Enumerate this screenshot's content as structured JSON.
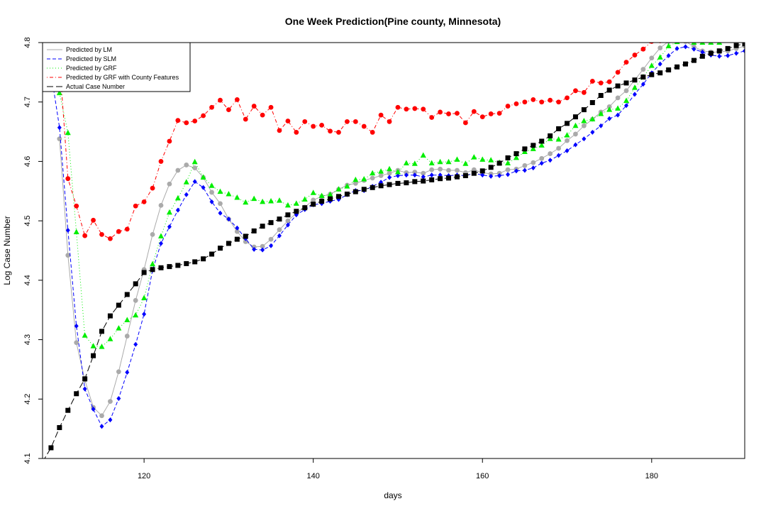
{
  "chart_data": {
    "type": "line",
    "title": "One Week Prediction(Pine county, Minnesota)",
    "xlabel": "days",
    "ylabel": "Log Case Number",
    "xlim": [
      108,
      191
    ],
    "ylim": [
      4.1,
      4.8
    ],
    "xticks": [
      120,
      140,
      160,
      180
    ],
    "yticks": [
      4.1,
      4.2,
      4.3,
      4.4,
      4.5,
      4.6,
      4.7,
      4.8
    ],
    "grid": false,
    "legend_position": "top-left",
    "x": [
      108,
      109,
      110,
      111,
      112,
      113,
      114,
      115,
      116,
      117,
      118,
      119,
      120,
      121,
      122,
      123,
      124,
      125,
      126,
      127,
      128,
      129,
      130,
      131,
      132,
      133,
      134,
      135,
      136,
      137,
      138,
      139,
      140,
      141,
      142,
      143,
      144,
      145,
      146,
      147,
      148,
      149,
      150,
      151,
      152,
      153,
      154,
      155,
      156,
      157,
      158,
      159,
      160,
      161,
      162,
      163,
      164,
      165,
      166,
      167,
      168,
      169,
      170,
      171,
      172,
      173,
      174,
      175,
      176,
      177,
      178,
      179,
      180,
      181,
      182,
      183,
      184,
      185,
      186,
      187,
      188,
      189,
      190,
      191
    ],
    "series": [
      {
        "name": "Predicted by LM",
        "color": "#aaaaaa",
        "line_style": "solid",
        "marker": "circle",
        "values": [
          null,
          null,
          4.638,
          4.442,
          4.295,
          4.232,
          4.186,
          4.172,
          4.196,
          4.246,
          4.306,
          4.366,
          4.418,
          4.477,
          4.526,
          4.562,
          4.585,
          4.594,
          4.589,
          4.573,
          4.548,
          4.529,
          4.503,
          4.482,
          4.465,
          4.456,
          4.457,
          4.469,
          4.485,
          4.5,
          4.513,
          4.523,
          4.535,
          4.541,
          4.545,
          4.553,
          4.56,
          4.563,
          4.568,
          4.572,
          4.576,
          4.58,
          4.585,
          4.581,
          4.582,
          4.58,
          4.586,
          4.587,
          4.585,
          4.585,
          4.581,
          4.586,
          4.581,
          4.579,
          4.58,
          4.586,
          4.587,
          4.593,
          4.598,
          4.605,
          4.613,
          4.622,
          4.635,
          4.646,
          4.66,
          4.671,
          4.683,
          4.692,
          4.707,
          4.719,
          4.737,
          4.755,
          4.774,
          4.791,
          4.802,
          4.803,
          4.802,
          4.793,
          4.786,
          4.784,
          4.784,
          4.786,
          4.79,
          4.794
        ]
      },
      {
        "name": "Predicted by SLM",
        "color": "#0000ff",
        "line_style": "dashed",
        "marker": "diamond",
        "values": [
          null,
          4.75,
          4.657,
          4.484,
          4.323,
          4.217,
          4.183,
          4.154,
          4.165,
          4.201,
          4.245,
          4.292,
          4.343,
          4.417,
          4.462,
          4.49,
          4.518,
          4.544,
          4.566,
          4.556,
          4.532,
          4.513,
          4.503,
          4.488,
          4.47,
          4.452,
          4.451,
          4.458,
          4.475,
          4.493,
          4.51,
          4.519,
          4.527,
          4.529,
          4.533,
          4.536,
          4.544,
          4.551,
          4.551,
          4.558,
          4.565,
          4.573,
          4.576,
          4.577,
          4.577,
          4.574,
          4.577,
          4.577,
          4.576,
          4.577,
          4.576,
          4.58,
          4.577,
          4.575,
          4.576,
          4.578,
          4.584,
          4.585,
          4.589,
          4.597,
          4.602,
          4.61,
          4.618,
          4.628,
          4.638,
          4.649,
          4.66,
          4.672,
          4.678,
          4.694,
          4.713,
          4.73,
          4.749,
          4.764,
          4.778,
          4.79,
          4.793,
          4.789,
          4.784,
          4.779,
          4.777,
          4.778,
          4.782,
          4.786
        ]
      },
      {
        "name": "Predicted by GRF",
        "color": "#00ee00",
        "line_style": "dotted",
        "marker": "triangle",
        "values": [
          null,
          null,
          4.715,
          4.648,
          4.481,
          4.307,
          4.289,
          4.288,
          4.301,
          4.319,
          4.333,
          4.341,
          4.37,
          4.427,
          4.474,
          4.514,
          4.538,
          4.565,
          4.599,
          4.573,
          4.559,
          4.549,
          4.545,
          4.539,
          4.531,
          4.537,
          4.532,
          4.533,
          4.534,
          4.526,
          4.529,
          4.536,
          4.547,
          4.542,
          4.544,
          4.553,
          4.558,
          4.569,
          4.57,
          4.58,
          4.583,
          4.587,
          4.582,
          4.597,
          4.596,
          4.61,
          4.597,
          4.599,
          4.599,
          4.603,
          4.596,
          4.607,
          4.603,
          4.602,
          4.598,
          4.597,
          4.606,
          4.616,
          4.621,
          4.627,
          4.638,
          4.637,
          4.644,
          4.66,
          4.668,
          4.671,
          4.68,
          4.687,
          4.689,
          4.702,
          4.724,
          4.742,
          4.761,
          4.775,
          4.794,
          4.801,
          4.803,
          4.8,
          4.8,
          4.8,
          4.8,
          4.804,
          4.805,
          4.806
        ]
      },
      {
        "name": "Predicted by GRF with County Features",
        "color": "#ff0000",
        "line_style": "dotdash",
        "marker": "circle",
        "values": [
          null,
          null,
          4.77,
          4.571,
          4.525,
          4.475,
          4.501,
          4.477,
          4.47,
          4.482,
          4.486,
          4.525,
          4.532,
          4.555,
          4.6,
          4.634,
          4.669,
          4.665,
          4.668,
          4.677,
          4.691,
          4.703,
          4.687,
          4.704,
          4.671,
          4.693,
          4.678,
          4.691,
          4.652,
          4.668,
          4.649,
          4.667,
          4.659,
          4.661,
          4.651,
          4.649,
          4.667,
          4.667,
          4.659,
          4.649,
          4.678,
          4.667,
          4.691,
          4.688,
          4.689,
          4.688,
          4.674,
          4.683,
          4.68,
          4.681,
          4.665,
          4.684,
          4.675,
          4.68,
          4.681,
          4.693,
          4.697,
          4.7,
          4.704,
          4.7,
          4.703,
          4.7,
          4.707,
          4.719,
          4.716,
          4.735,
          4.732,
          4.734,
          4.75,
          4.767,
          4.779,
          4.789,
          4.802,
          4.803,
          4.805,
          4.806,
          4.807,
          4.808,
          4.809,
          4.81,
          4.81,
          4.811,
          4.812,
          4.813
        ]
      },
      {
        "name": "Actual Case Number",
        "color": "#000000",
        "line_style": "longdash",
        "marker": "square",
        "values": [
          4.094,
          4.118,
          4.152,
          4.181,
          4.209,
          4.234,
          4.273,
          4.314,
          4.34,
          4.358,
          4.376,
          4.394,
          4.413,
          4.418,
          4.421,
          4.423,
          4.425,
          4.428,
          4.431,
          4.436,
          4.444,
          4.454,
          4.462,
          4.469,
          4.474,
          4.483,
          4.491,
          4.497,
          4.503,
          4.51,
          4.516,
          4.522,
          4.528,
          4.533,
          4.537,
          4.541,
          4.545,
          4.549,
          4.553,
          4.556,
          4.559,
          4.561,
          4.563,
          4.564,
          4.566,
          4.567,
          4.569,
          4.571,
          4.572,
          4.574,
          4.576,
          4.58,
          4.584,
          4.59,
          4.597,
          4.606,
          4.613,
          4.621,
          4.627,
          4.634,
          4.643,
          4.655,
          4.664,
          4.675,
          4.687,
          4.699,
          4.711,
          4.72,
          4.727,
          4.732,
          4.737,
          4.742,
          4.746,
          4.749,
          4.754,
          4.759,
          4.764,
          4.77,
          4.777,
          4.782,
          4.786,
          4.79,
          4.795,
          4.798
        ]
      }
    ]
  }
}
